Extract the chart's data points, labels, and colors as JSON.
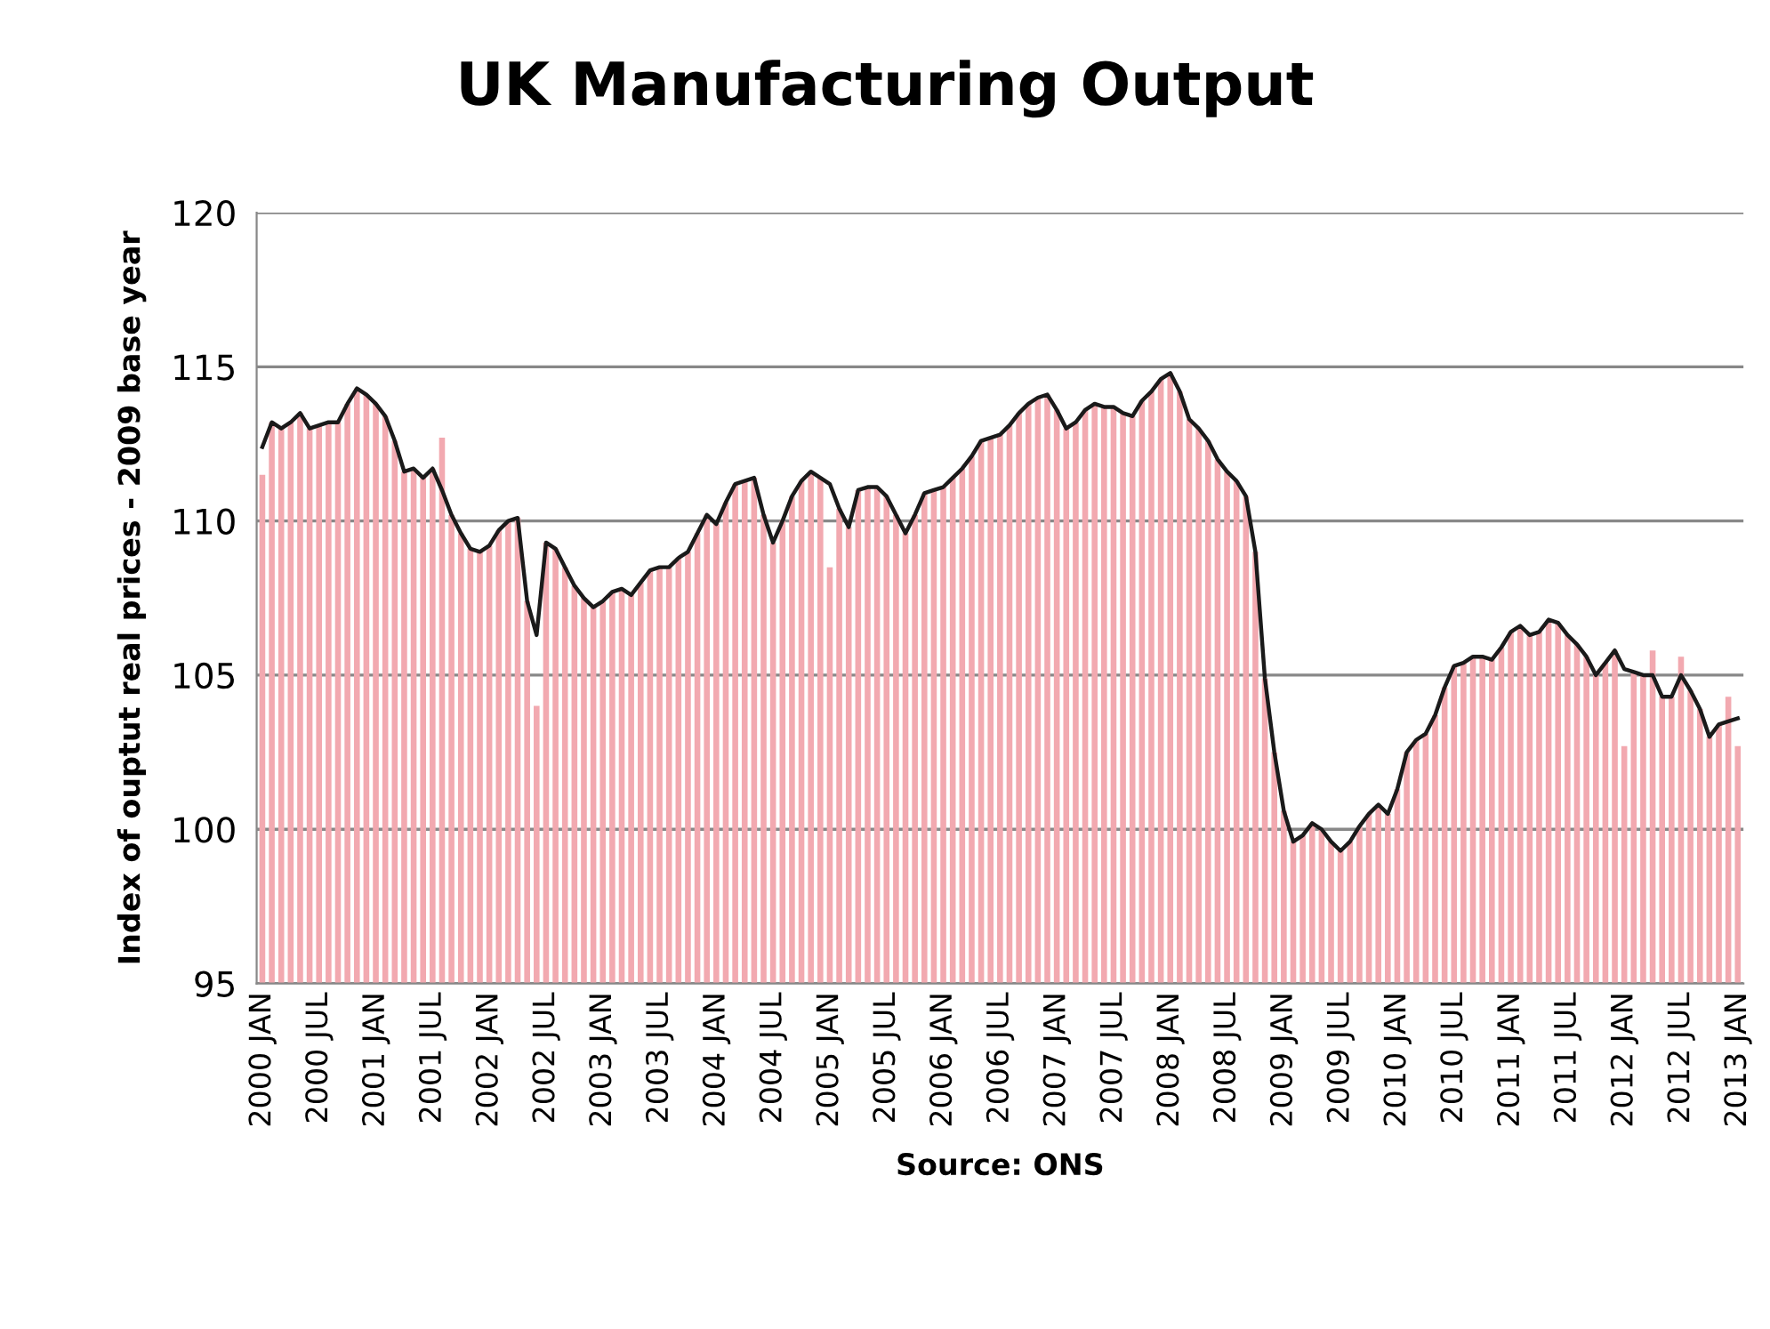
{
  "chart_data": {
    "type": "bar",
    "title": "UK Manufacturing Output",
    "ylabel": "Index of ouptut real prices - 2009 base year",
    "xlabel": "Source: ONS",
    "categories": [
      "2000 JAN",
      null,
      null,
      null,
      null,
      null,
      "2000 JUL",
      null,
      null,
      null,
      null,
      null,
      "2001 JAN",
      null,
      null,
      null,
      null,
      null,
      "2001 JUL",
      null,
      null,
      null,
      null,
      null,
      "2002 JAN",
      null,
      null,
      null,
      null,
      null,
      "2002 JUL",
      null,
      null,
      null,
      null,
      null,
      "2003 JAN",
      null,
      null,
      null,
      null,
      null,
      "2003 JUL",
      null,
      null,
      null,
      null,
      null,
      "2004 JAN",
      null,
      null,
      null,
      null,
      null,
      "2004 JUL",
      null,
      null,
      null,
      null,
      null,
      "2005 JAN",
      null,
      null,
      null,
      null,
      null,
      "2005 JUL",
      null,
      null,
      null,
      null,
      null,
      "2006 JAN",
      null,
      null,
      null,
      null,
      null,
      "2006 JUL",
      null,
      null,
      null,
      null,
      null,
      "2007 JAN",
      null,
      null,
      null,
      null,
      null,
      "2007 JUL",
      null,
      null,
      null,
      null,
      null,
      "2008 JAN",
      null,
      null,
      null,
      null,
      null,
      "2008 JUL",
      null,
      null,
      null,
      null,
      null,
      "2009 JAN",
      null,
      null,
      null,
      null,
      null,
      "2009 JUL",
      null,
      null,
      null,
      null,
      null,
      "2010 JAN",
      null,
      null,
      null,
      null,
      null,
      "2010 JUL",
      null,
      null,
      null,
      null,
      null,
      "2011 JAN",
      null,
      null,
      null,
      null,
      null,
      "2011 JUL",
      null,
      null,
      null,
      null,
      null,
      "2012 JAN",
      null,
      null,
      null,
      null,
      null,
      "2012 JUL",
      null,
      null,
      null,
      null,
      null,
      "2013 JAN"
    ],
    "series": [
      {
        "color": "#f2a9b0",
        "values": [
          111.5,
          113.2,
          113.0,
          113.2,
          113.5,
          113.0,
          113.1,
          113.2,
          113.2,
          113.8,
          114.3,
          114.1,
          113.8,
          113.4,
          112.6,
          111.6,
          111.7,
          111.4,
          111.7,
          112.7,
          110.2,
          109.6,
          109.1,
          109.0,
          109.2,
          109.7,
          110.0,
          110.1,
          107.4,
          104.0,
          109.3,
          109.1,
          108.5,
          107.9,
          107.5,
          107.2,
          107.4,
          107.7,
          107.8,
          107.6,
          108.0,
          108.4,
          108.5,
          108.5,
          108.8,
          109.0,
          109.6,
          110.2,
          109.9,
          110.6,
          111.2,
          111.3,
          111.4,
          110.2,
          109.3,
          110.0,
          110.8,
          111.3,
          111.6,
          111.4,
          108.5,
          110.4,
          109.8,
          111.0,
          111.1,
          111.1,
          110.8,
          110.2,
          109.6,
          110.2,
          110.9,
          111.0,
          111.1,
          111.4,
          111.7,
          112.1,
          112.6,
          112.7,
          112.8,
          113.1,
          113.5,
          113.8,
          114.0,
          114.1,
          113.6,
          113.0,
          113.2,
          113.6,
          113.8,
          113.7,
          113.7,
          113.5,
          113.4,
          113.9,
          114.2,
          114.6,
          114.8,
          114.2,
          113.3,
          113.0,
          112.6,
          112.0,
          111.6,
          111.3,
          110.8,
          109.0,
          104.9,
          102.5,
          100.6,
          99.6,
          99.8,
          100.2,
          100.0,
          99.6,
          99.3,
          99.6,
          100.1,
          100.5,
          100.8,
          100.5,
          101.3,
          102.5,
          102.9,
          103.1,
          103.7,
          104.6,
          105.3,
          105.4,
          105.6,
          105.6,
          105.5,
          105.9,
          106.4,
          106.6,
          106.3,
          106.4,
          106.8,
          106.7,
          106.3,
          106.0,
          105.6,
          105.0,
          105.4,
          105.8,
          102.7,
          105.1,
          105.0,
          105.8,
          104.3,
          104.3,
          105.6,
          104.5,
          103.9,
          103.0,
          103.4,
          104.3,
          102.7
        ]
      },
      {
        "type": "line",
        "color": "#1a1a1a",
        "values": [
          112.4,
          113.2,
          113.0,
          113.2,
          113.5,
          113.0,
          113.1,
          113.2,
          113.2,
          113.8,
          114.3,
          114.1,
          113.8,
          113.4,
          112.6,
          111.6,
          111.7,
          111.4,
          111.7,
          111.0,
          110.2,
          109.6,
          109.1,
          109.0,
          109.2,
          109.7,
          110.0,
          110.1,
          107.4,
          106.3,
          109.3,
          109.1,
          108.5,
          107.9,
          107.5,
          107.2,
          107.4,
          107.7,
          107.8,
          107.6,
          108.0,
          108.4,
          108.5,
          108.5,
          108.8,
          109.0,
          109.6,
          110.2,
          109.9,
          110.6,
          111.2,
          111.3,
          111.4,
          110.2,
          109.3,
          110.0,
          110.8,
          111.3,
          111.6,
          111.4,
          111.2,
          110.4,
          109.8,
          111.0,
          111.1,
          111.1,
          110.8,
          110.2,
          109.6,
          110.2,
          110.9,
          111.0,
          111.1,
          111.4,
          111.7,
          112.1,
          112.6,
          112.7,
          112.8,
          113.1,
          113.5,
          113.8,
          114.0,
          114.1,
          113.6,
          113.0,
          113.2,
          113.6,
          113.8,
          113.7,
          113.7,
          113.5,
          113.4,
          113.9,
          114.2,
          114.6,
          114.8,
          114.2,
          113.3,
          113.0,
          112.6,
          112.0,
          111.6,
          111.3,
          110.8,
          109.0,
          104.9,
          102.5,
          100.6,
          99.6,
          99.8,
          100.2,
          100.0,
          99.6,
          99.3,
          99.6,
          100.1,
          100.5,
          100.8,
          100.5,
          101.3,
          102.5,
          102.9,
          103.1,
          103.7,
          104.6,
          105.3,
          105.4,
          105.6,
          105.6,
          105.5,
          105.9,
          106.4,
          106.6,
          106.3,
          106.4,
          106.8,
          106.7,
          106.3,
          106.0,
          105.6,
          105.0,
          105.4,
          105.8,
          105.2,
          105.1,
          105.0,
          105.0,
          104.3,
          104.3,
          105.0,
          104.5,
          103.9,
          103.0,
          103.4,
          103.5,
          103.6
        ]
      }
    ],
    "ylim": [
      95,
      120
    ],
    "yticks": [
      95,
      100,
      105,
      110,
      115,
      120
    ],
    "grid": "y"
  }
}
